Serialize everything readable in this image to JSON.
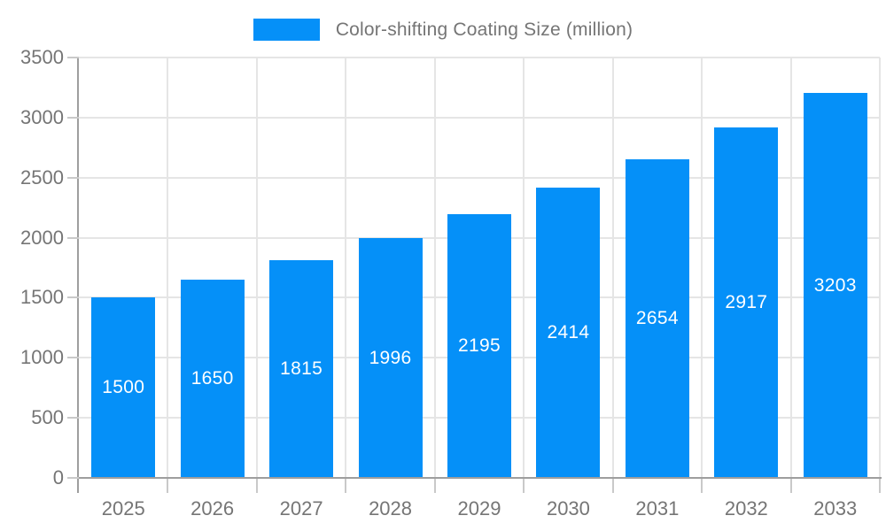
{
  "chart_data": {
    "type": "bar",
    "title": "Color-shifting Coating Size (million)",
    "categories": [
      "2025",
      "2026",
      "2027",
      "2028",
      "2029",
      "2030",
      "2031",
      "2032",
      "2033"
    ],
    "values": [
      1500,
      1650,
      1815,
      1996,
      2195,
      2414,
      2654,
      2917,
      3203
    ],
    "xlabel": "",
    "ylabel": "",
    "ylim": [
      0,
      3500
    ],
    "ytick_step": 500,
    "ytick_labels": [
      "0",
      "500",
      "1000",
      "1500",
      "2000",
      "2500",
      "3000",
      "3500"
    ],
    "grid": true,
    "legend_position": "top-center",
    "bar_labels_inside": true,
    "colors": {
      "bar": "#0590F8",
      "bar_label": "#FFFFFF",
      "axis_text": "#757575",
      "gridline": "#E5E5E5",
      "tick": "#C9C9C9",
      "axis_line": "#9E9E9E",
      "background": "#FFFFFF"
    }
  }
}
